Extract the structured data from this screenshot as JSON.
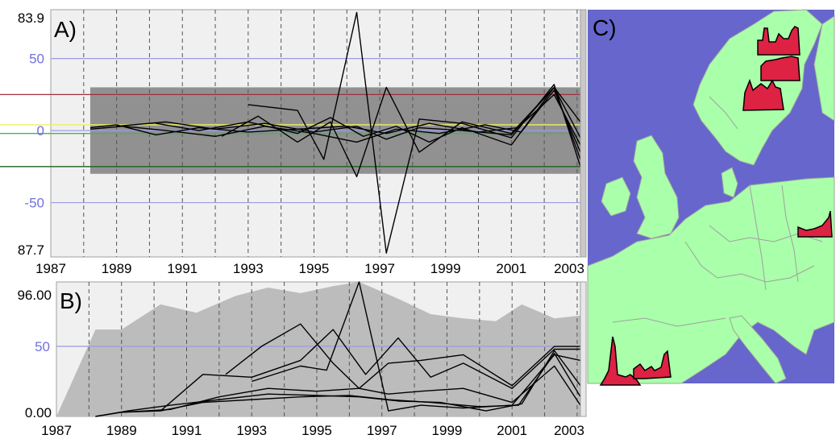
{
  "chart_data": [
    {
      "panel": "A)",
      "type": "line",
      "xlim": [
        1987,
        2003.1
      ],
      "ylim": [
        -87.7,
        83.9
      ],
      "x_ticks": [
        "1987",
        "1989",
        "1991",
        "1993",
        "1995",
        "1997",
        "1999",
        "2001",
        "2003"
      ],
      "y_extent_labels": {
        "top": "83.9",
        "bottom": "87.7"
      },
      "y_guides": [
        {
          "label": "50",
          "value": 50,
          "color": "#9a9ae8"
        },
        {
          "label": "0",
          "value": 0,
          "color": "#9a9ae8"
        },
        {
          "label": "-50",
          "value": -50,
          "color": "#9a9ae8"
        }
      ],
      "threshold_lines": [
        {
          "value": 25,
          "color": "#a03040"
        },
        {
          "value": 4,
          "color": "#f0f060"
        },
        {
          "value": -2,
          "color": "#50b050"
        },
        {
          "value": -25,
          "color": "#206020"
        }
      ],
      "background_band": {
        "color": "#808080",
        "description_values": [
          -30,
          30
        ]
      },
      "grid": true,
      "series": [
        {
          "x": [
            1988.2,
            1989.0,
            1990.2,
            1991.5,
            1993.0,
            1994.5,
            1996.0,
            1997.2,
            1998.5,
            2000.0,
            2001.2,
            2002.3,
            2003.1
          ],
          "y": [
            2,
            4,
            -3,
            2,
            -1,
            1,
            3,
            -2,
            5,
            -1,
            2,
            25,
            -10
          ]
        },
        {
          "x": [
            1988.2,
            1989.2,
            1990.5,
            1992.0,
            1993.5,
            1995.0,
            1996.3,
            1997.5,
            1998.8,
            2000.2,
            2001.3,
            2002.3,
            2003.1
          ],
          "y": [
            1,
            3,
            0,
            -4,
            3,
            -2,
            -8,
            1,
            -2,
            4,
            -1,
            28,
            -15
          ]
        },
        {
          "x": [
            1989.0,
            1990.5,
            1992.0,
            1993.5,
            1995.0,
            1996.3,
            1997.2,
            1998.2,
            1999.5,
            2001.0,
            2002.3,
            2003.1
          ],
          "y": [
            3,
            6,
            1,
            5,
            -1,
            3,
            -6,
            2,
            0,
            -3,
            30,
            -20
          ]
        },
        {
          "x": [
            1993.0,
            1994.5,
            1995.3,
            1996.3,
            1997.2,
            1998.2,
            1999.5,
            2001.0,
            2002.3,
            2003.1
          ],
          "y": [
            18,
            14,
            -20,
            82,
            -85,
            8,
            5,
            -5,
            32,
            -25
          ]
        },
        {
          "x": [
            1992.2,
            1993.3,
            1994.5,
            1995.5,
            1996.3,
            1997.2,
            1998.2,
            1999.5,
            2001.0,
            2002.3,
            2003.1
          ],
          "y": [
            -4,
            10,
            -8,
            6,
            -32,
            30,
            -15,
            6,
            -2,
            30,
            -5
          ]
        },
        {
          "x": [
            1990.2,
            1991.5,
            1993.0,
            1994.5,
            1995.5,
            1996.5,
            1997.5,
            1998.5,
            1999.5,
            2001.0,
            2002.3,
            2003.1
          ],
          "y": [
            5,
            0,
            6,
            -2,
            9,
            -4,
            3,
            -8,
            2,
            -10,
            30,
            6
          ]
        }
      ]
    },
    {
      "panel": "B)",
      "type": "line",
      "xlim": [
        1987,
        2003.1
      ],
      "ylim": [
        0,
        96
      ],
      "x_ticks": [
        "1987",
        "1989",
        "1991",
        "1993",
        "1995",
        "1997",
        "1999",
        "2001",
        "2003"
      ],
      "y_extent_labels": {
        "top": "96.00",
        "bottom": "0.00"
      },
      "y_guides": [
        {
          "label": "50",
          "value": 50,
          "color": "#9a9ae8"
        }
      ],
      "grid": true,
      "area": {
        "color": "#bcbcbc",
        "x": [
          1987.0,
          1988.2,
          1989.0,
          1990.2,
          1991.3,
          1992.5,
          1993.5,
          1994.5,
          1995.5,
          1996.3,
          1997.5,
          1998.5,
          1999.5,
          2000.5,
          2001.3,
          2002.3,
          2003.1
        ],
        "y": [
          0,
          62,
          62,
          80,
          74,
          86,
          92,
          88,
          93,
          96,
          84,
          73,
          70,
          68,
          80,
          70,
          72
        ]
      },
      "series": [
        {
          "x": [
            1988.2,
            1989.0,
            1990.2,
            1991.5,
            1993.0,
            1994.5,
            1996.0,
            1997.2,
            1998.5,
            2000.0,
            2001.2,
            2002.3,
            2003.1
          ],
          "y": [
            0,
            3,
            4,
            10,
            12,
            14,
            15,
            12,
            10,
            7,
            8,
            45,
            14
          ]
        },
        {
          "x": [
            1988.2,
            1989.2,
            1990.5,
            1992.0,
            1993.5,
            1995.0,
            1996.3,
            1997.5,
            1998.8,
            2000.2,
            2001.3,
            2002.3,
            2003.1
          ],
          "y": [
            0,
            4,
            8,
            12,
            16,
            15,
            14,
            11,
            10,
            4,
            9,
            47,
            22
          ]
        },
        {
          "x": [
            1989.0,
            1990.5,
            1992.0,
            1993.5,
            1995.0,
            1996.3,
            1997.2,
            1998.2,
            1999.5,
            2001.0,
            2002.3,
            2003.1
          ],
          "y": [
            3,
            5,
            14,
            20,
            18,
            20,
            16,
            18,
            20,
            10,
            36,
            8
          ]
        },
        {
          "x": [
            1993.0,
            1994.5,
            1995.3,
            1996.3,
            1997.2,
            1998.2,
            1999.5,
            2001.0,
            2002.3,
            2003.1
          ],
          "y": [
            25,
            36,
            33,
            96,
            4,
            8,
            6,
            8,
            44,
            40
          ]
        },
        {
          "x": [
            1992.2,
            1993.3,
            1994.5,
            1995.5,
            1996.3,
            1997.2,
            1998.2,
            1999.5,
            2001.0,
            2002.3,
            2003.1
          ],
          "y": [
            30,
            50,
            66,
            38,
            20,
            38,
            40,
            44,
            22,
            50,
            50
          ]
        },
        {
          "x": [
            1990.2,
            1991.5,
            1993.0,
            1994.5,
            1995.5,
            1996.5,
            1997.5,
            1998.5,
            1999.5,
            2001.0,
            2002.3,
            2003.1
          ],
          "y": [
            4,
            30,
            28,
            40,
            62,
            30,
            56,
            28,
            38,
            20,
            48,
            48
          ]
        }
      ]
    }
  ],
  "map_panel": {
    "label": "C)",
    "sea_color": "#6666cc",
    "land_color": "#aaffaa",
    "border_color": "#a0a0a0",
    "glyph_color": "#dd2244",
    "glyph_count": 6
  }
}
